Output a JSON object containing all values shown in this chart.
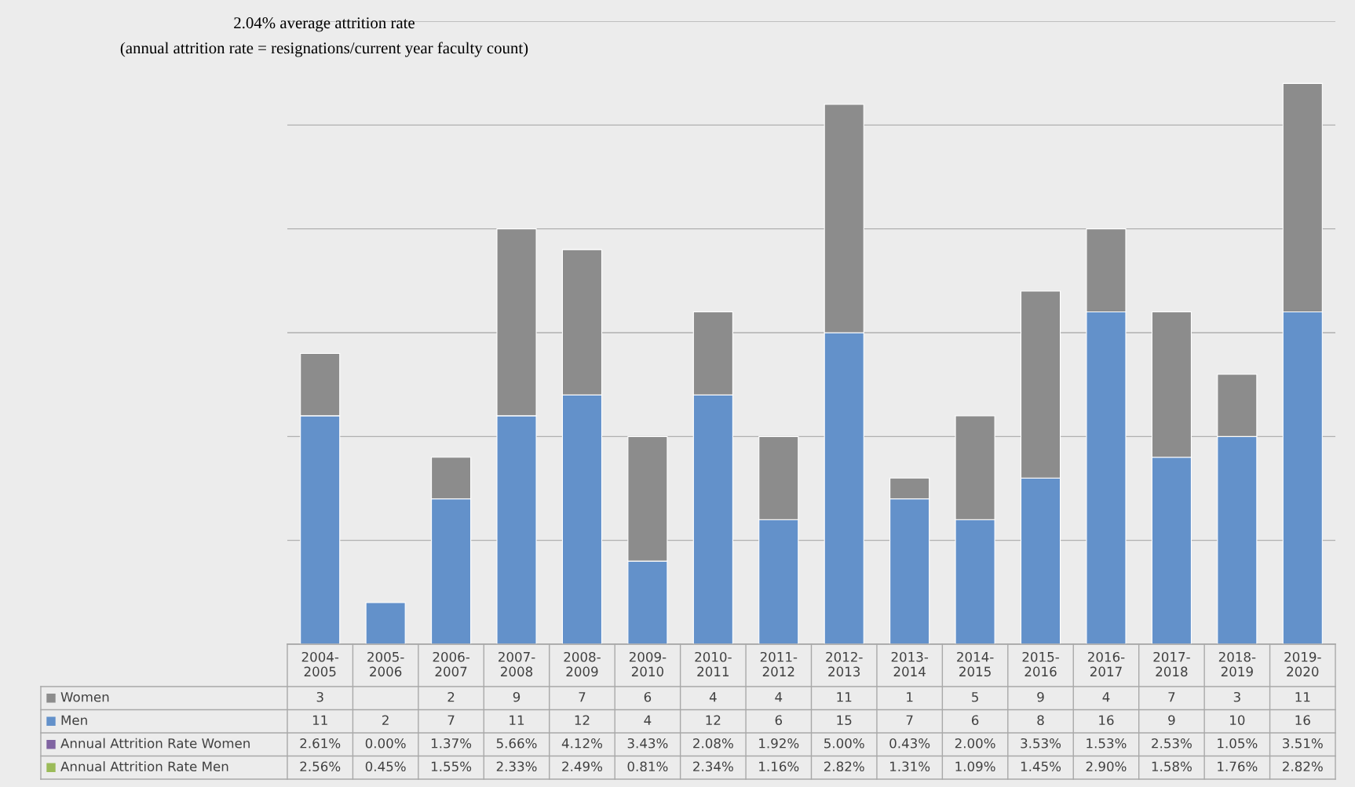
{
  "chart_data": {
    "type": "bar",
    "stacked": true,
    "title": "2.04% average attrition rate",
    "subtitle": "(annual attrition rate = resignations/current year faculty count)",
    "categories": [
      "2004-2005",
      "2005-2006",
      "2006-2007",
      "2007-2008",
      "2008-2009",
      "2009-2010",
      "2010-2011",
      "2011-2012",
      "2012-2013",
      "2013-2014",
      "2014-2015",
      "2015-2016",
      "2016-2017",
      "2017-2018",
      "2018-2019",
      "2019-2020"
    ],
    "series": [
      {
        "name": "Men",
        "color": "#6391ca",
        "values": [
          11,
          2,
          7,
          11,
          12,
          4,
          12,
          6,
          15,
          7,
          6,
          8,
          16,
          9,
          10,
          16
        ]
      },
      {
        "name": "Women",
        "color": "#8c8c8c",
        "values": [
          3,
          null,
          2,
          9,
          7,
          6,
          4,
          4,
          11,
          1,
          5,
          9,
          4,
          7,
          3,
          11
        ]
      },
      {
        "name": "Annual Attrition Rate Women",
        "color": "#8064a2",
        "values": [
          null,
          null,
          null,
          null,
          null,
          null,
          null,
          null,
          null,
          null,
          null,
          null,
          null,
          null,
          null,
          null
        ],
        "value_labels": [
          "2.61%",
          "0.00%",
          "1.37%",
          "5.66%",
          "4.12%",
          "3.43%",
          "2.08%",
          "1.92%",
          "5.00%",
          "0.43%",
          "2.00%",
          "3.53%",
          "1.53%",
          "2.53%",
          "1.05%",
          "3.51%"
        ]
      },
      {
        "name": "Annual Attrition Rate Men",
        "color": "#9bbb59",
        "values": [
          null,
          null,
          null,
          null,
          null,
          null,
          null,
          null,
          null,
          null,
          null,
          null,
          null,
          null,
          null,
          null
        ],
        "value_labels": [
          "2.56%",
          "0.45%",
          "1.55%",
          "2.33%",
          "2.49%",
          "0.81%",
          "2.34%",
          "1.16%",
          "2.82%",
          "1.31%",
          "1.09%",
          "1.45%",
          "2.90%",
          "1.58%",
          "1.76%",
          "2.82%"
        ]
      }
    ],
    "ylim": [
      0,
      30
    ],
    "yticks": [
      {
        "value": 0,
        "label": null
      },
      {
        "value": 5,
        "label": null
      },
      {
        "value": 10,
        "label": null
      },
      {
        "value": 15,
        "label": null
      },
      {
        "value": 20,
        "label": null
      },
      {
        "value": 25,
        "label": null
      },
      {
        "value": 30,
        "label": null
      }
    ],
    "grid": "y",
    "data_labels": true,
    "legend": "bottom"
  }
}
